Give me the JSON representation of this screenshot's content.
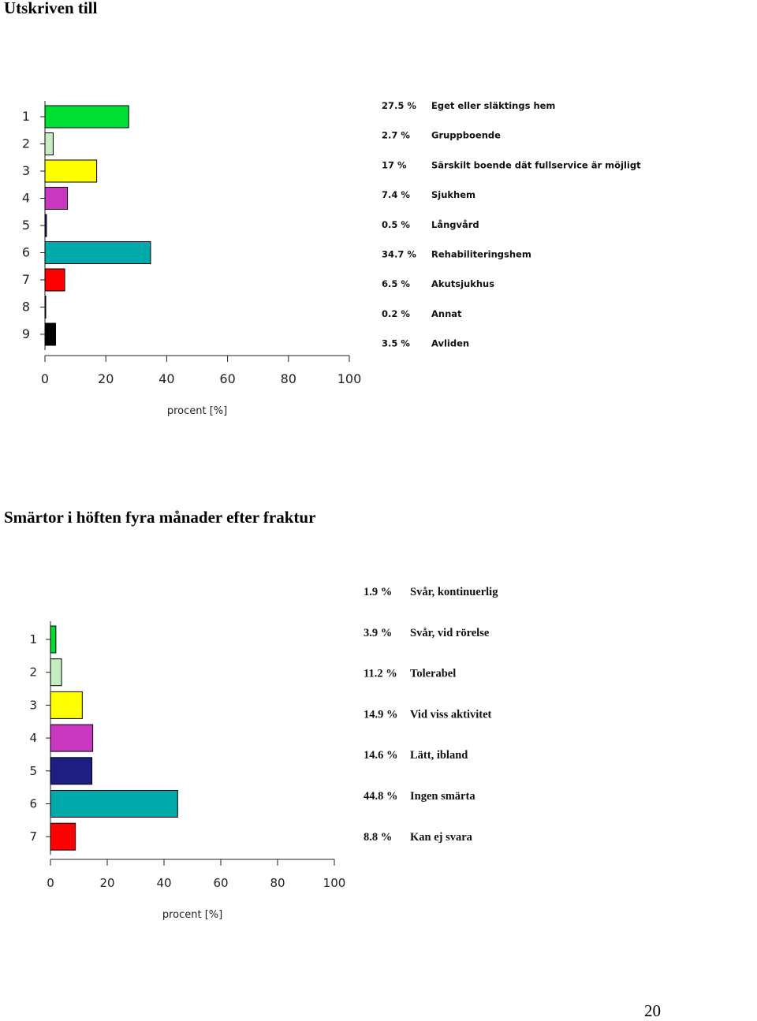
{
  "sections": [
    {
      "title": "Utskriven till",
      "chart_data": {
        "type": "bar",
        "orientation": "horizontal",
        "categories": [
          "1",
          "2",
          "3",
          "4",
          "5",
          "6",
          "7",
          "8",
          "9"
        ],
        "values": [
          27.5,
          2.7,
          17,
          7.4,
          0.5,
          34.7,
          6.5,
          0.2,
          3.5
        ],
        "value_labels": [
          "27.5 %",
          "2.7 %",
          "17 %",
          "7.4 %",
          "0.5 %",
          "34.7 %",
          "6.5 %",
          "0.2 %",
          "3.5 %"
        ],
        "legend": [
          "Eget eller släktings hem",
          "Gruppboende",
          "Särskilt boende dät fullservice är möjligt",
          "Sjukhem",
          "Långvård",
          "Rehabiliteringshem",
          "Akutsjukhus",
          "Annat",
          "Avliden"
        ],
        "colors": [
          "#00dd33",
          "#c6edc2",
          "#ffff00",
          "#c838c0",
          "#1e1e82",
          "#00aaaa",
          "#ff0000",
          "#777777",
          "#000000"
        ],
        "xlim": [
          0,
          100
        ],
        "xticks": [
          "0",
          "20",
          "40",
          "60",
          "80",
          "100"
        ],
        "xlabel": "procent [%]",
        "grid": false
      }
    },
    {
      "title": "Smärtor i höften fyra månader efter fraktur",
      "chart_data": {
        "type": "bar",
        "orientation": "horizontal",
        "categories": [
          "1",
          "2",
          "3",
          "4",
          "5",
          "6",
          "7"
        ],
        "values": [
          1.9,
          3.9,
          11.2,
          14.9,
          14.6,
          44.8,
          8.8
        ],
        "value_labels": [
          "1.9 %",
          "3.9 %",
          "11.2 %",
          "14.9 %",
          "14.6 %",
          "44.8 %",
          "8.8 %"
        ],
        "legend": [
          "Svår, kontinuerlig",
          "Svår, vid rörelse",
          "Tolerabel",
          "Vid viss aktivitet",
          "Lätt, ibland",
          "Ingen smärta",
          "Kan ej svara"
        ],
        "colors": [
          "#00dd33",
          "#c6edc2",
          "#ffff00",
          "#c838c0",
          "#1e1e82",
          "#00aaaa",
          "#ff0000"
        ],
        "xlim": [
          0,
          100
        ],
        "xticks": [
          "0",
          "20",
          "40",
          "60",
          "80",
          "100"
        ],
        "xlabel": "procent [%]",
        "grid": false
      }
    }
  ],
  "page_number": "20"
}
